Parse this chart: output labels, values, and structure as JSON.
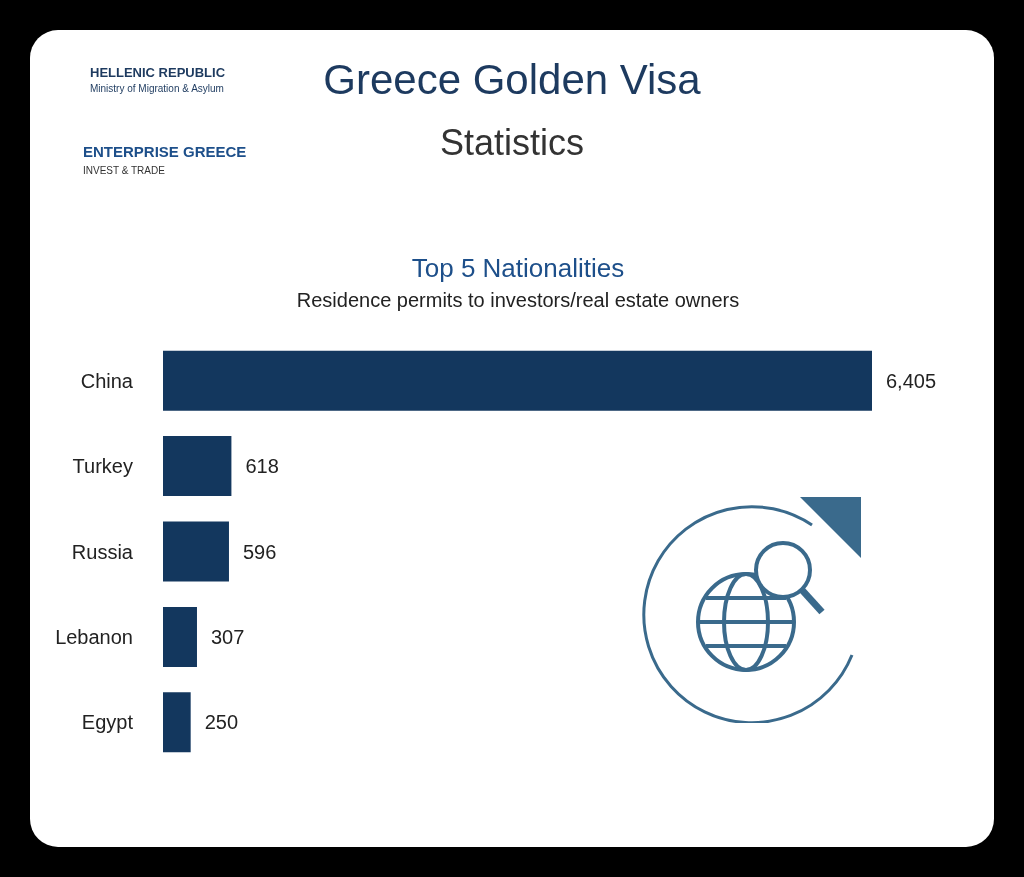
{
  "chart_data": {
    "type": "bar",
    "orientation": "horizontal",
    "title": "Greece Golden Visa",
    "subtitle": "Statistics",
    "annotations": [
      "HELLENIC REPUBLIC",
      "Ministry of Migration & Asylum",
      "ENTERPRISE GREECE",
      "INVEST & TRADE",
      "Top 5 Nationalities",
      "Residence permits to investors/real estate owners"
    ],
    "categories": [
      "China",
      "Turkey",
      "Russia",
      "Lebanon",
      "Egypt"
    ],
    "values": [
      6405,
      618,
      596,
      307,
      250
    ],
    "value_labels": [
      "6,405",
      "618",
      "596",
      "307",
      "250"
    ],
    "color": "#13375e"
  }
}
